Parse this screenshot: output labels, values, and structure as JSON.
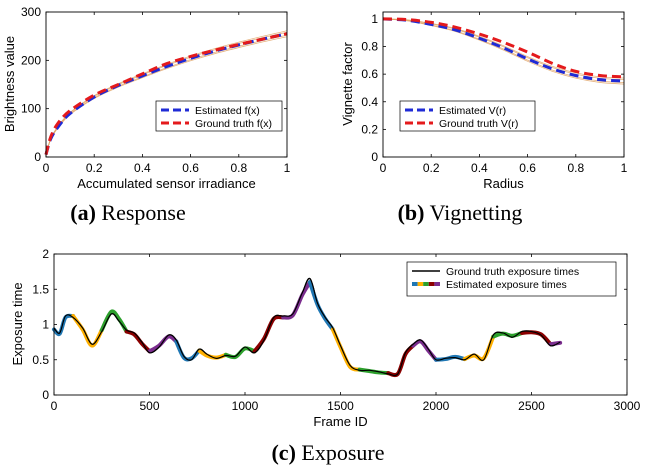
{
  "chart_data": [
    {
      "type": "line",
      "caption_label": "(a)",
      "caption_text": "Response",
      "xlabel": "Accumulated sensor irradiance",
      "ylabel": "Brightness value",
      "xlim": [
        0,
        1
      ],
      "ylim": [
        0,
        300
      ],
      "xticks": [
        "0",
        "0.2",
        "0.4",
        "0.6",
        "0.8",
        "1"
      ],
      "yticks": [
        "0",
        "100",
        "200",
        "300"
      ],
      "legend_position": "lower-right",
      "series": [
        {
          "name": "Estimated f(x)",
          "color": "#1f2bd6",
          "style": "dashed",
          "x": [
            0,
            0.02,
            0.05,
            0.1,
            0.2,
            0.3,
            0.4,
            0.5,
            0.6,
            0.7,
            0.8,
            0.9,
            1.0
          ],
          "y": [
            5,
            38,
            62,
            90,
            124,
            148,
            168,
            187,
            204,
            219,
            232,
            244,
            255
          ]
        },
        {
          "name": "Ground truth f(x)",
          "color": "#e41a1c",
          "style": "dashed",
          "x": [
            0,
            0.02,
            0.05,
            0.1,
            0.2,
            0.3,
            0.4,
            0.5,
            0.6,
            0.7,
            0.8,
            0.9,
            1.0
          ],
          "y": [
            5,
            42,
            70,
            96,
            128,
            150,
            172,
            193,
            208,
            221,
            233,
            244,
            255
          ]
        }
      ]
    },
    {
      "type": "line",
      "caption_label": "(b)",
      "caption_text": "Vignetting",
      "xlabel": "Radius",
      "ylabel": "Vignette factor",
      "xlim": [
        0,
        1
      ],
      "ylim": [
        0,
        1.05
      ],
      "xticks": [
        "0",
        "0.2",
        "0.4",
        "0.6",
        "0.8",
        "1"
      ],
      "yticks": [
        "0",
        "0.2",
        "0.4",
        "0.6",
        "0.8",
        "1"
      ],
      "legend_position": "lower-left",
      "series": [
        {
          "name": "Estimated V(r)",
          "color": "#1f2bd6",
          "style": "dashed",
          "x": [
            0,
            0.1,
            0.2,
            0.3,
            0.4,
            0.5,
            0.6,
            0.7,
            0.8,
            0.9,
            1.0
          ],
          "y": [
            1.0,
            0.99,
            0.96,
            0.92,
            0.86,
            0.79,
            0.71,
            0.64,
            0.59,
            0.56,
            0.55
          ]
        },
        {
          "name": "Ground truth V(r)",
          "color": "#e41a1c",
          "style": "dashed",
          "x": [
            0,
            0.1,
            0.2,
            0.3,
            0.4,
            0.5,
            0.6,
            0.7,
            0.8,
            0.9,
            1.0
          ],
          "y": [
            1.0,
            0.995,
            0.975,
            0.94,
            0.89,
            0.83,
            0.76,
            0.68,
            0.62,
            0.59,
            0.58
          ]
        }
      ]
    },
    {
      "type": "line",
      "caption_label": "(c)",
      "caption_text": "Exposure",
      "xlabel": "Frame ID",
      "ylabel": "Exposure time",
      "xlim": [
        0,
        3000
      ],
      "ylim": [
        0,
        2
      ],
      "xticks": [
        "0",
        "500",
        "1000",
        "1500",
        "2000",
        "2500",
        "3000"
      ],
      "yticks": [
        "0",
        "0.5",
        "1",
        "1.5",
        "2"
      ],
      "legend_position": "top-right",
      "series": [
        {
          "name": "Ground truth exposure times",
          "color": "#000000",
          "style": "solid",
          "x": [
            0,
            30,
            60,
            100,
            150,
            200,
            250,
            300,
            340,
            380,
            420,
            460,
            500,
            550,
            600,
            640,
            680,
            720,
            760,
            800,
            850,
            900,
            950,
            1000,
            1050,
            1100,
            1150,
            1200,
            1250,
            1300,
            1340,
            1380,
            1420,
            1460,
            1500,
            1550,
            1600,
            1650,
            1700,
            1750,
            1800,
            1840,
            1880,
            1920,
            1960,
            2000,
            2050,
            2100,
            2150,
            2200,
            2250,
            2300,
            2350,
            2400,
            2450,
            2500,
            2550,
            2600,
            2650
          ],
          "y": [
            0.95,
            0.88,
            1.12,
            1.1,
            0.95,
            0.72,
            0.9,
            1.15,
            1.05,
            0.92,
            0.88,
            0.75,
            0.6,
            0.68,
            0.85,
            0.78,
            0.55,
            0.5,
            0.65,
            0.58,
            0.52,
            0.56,
            0.55,
            0.68,
            0.6,
            0.78,
            1.1,
            1.12,
            1.15,
            1.45,
            1.65,
            1.3,
            1.1,
            0.95,
            0.7,
            0.42,
            0.35,
            0.35,
            0.33,
            0.3,
            0.3,
            0.6,
            0.72,
            0.78,
            0.65,
            0.5,
            0.52,
            0.53,
            0.5,
            0.58,
            0.5,
            0.85,
            0.88,
            0.82,
            0.9,
            0.9,
            0.85,
            0.7,
            0.75
          ]
        },
        {
          "name": "Estimated exposure times",
          "color": "#5b2c83",
          "style": "multicolor",
          "segment_colors": [
            "#1f77b4",
            "#ffb000",
            "#2ca02c",
            "#8b0000",
            "#7b2d8e"
          ],
          "x": [
            0,
            30,
            60,
            100,
            150,
            200,
            250,
            300,
            340,
            380,
            420,
            460,
            500,
            550,
            600,
            640,
            680,
            720,
            760,
            800,
            850,
            900,
            950,
            1000,
            1050,
            1100,
            1150,
            1200,
            1250,
            1300,
            1340,
            1380,
            1420,
            1460,
            1500,
            1550,
            1600,
            1650,
            1700,
            1750,
            1800,
            1840,
            1880,
            1920,
            1960,
            2000,
            2050,
            2100,
            2150,
            2200,
            2250,
            2300,
            2350,
            2400,
            2450,
            2500,
            2550,
            2600,
            2650
          ],
          "y": [
            0.93,
            0.87,
            1.1,
            1.12,
            0.93,
            0.7,
            0.92,
            1.18,
            1.08,
            0.9,
            0.86,
            0.73,
            0.62,
            0.7,
            0.83,
            0.76,
            0.53,
            0.52,
            0.63,
            0.56,
            0.53,
            0.57,
            0.54,
            0.66,
            0.62,
            0.8,
            1.08,
            1.1,
            1.13,
            1.42,
            1.6,
            1.28,
            1.08,
            0.93,
            0.68,
            0.4,
            0.36,
            0.34,
            0.32,
            0.31,
            0.3,
            0.58,
            0.7,
            0.76,
            0.63,
            0.5,
            0.51,
            0.54,
            0.51,
            0.56,
            0.52,
            0.83,
            0.87,
            0.84,
            0.88,
            0.89,
            0.86,
            0.72,
            0.74
          ]
        }
      ]
    }
  ]
}
